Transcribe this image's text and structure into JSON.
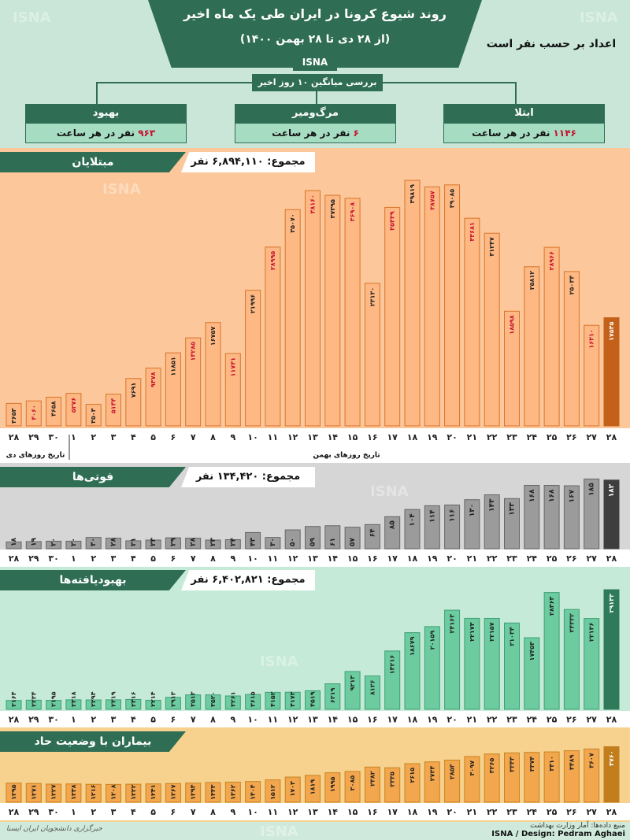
{
  "header": {
    "title": "روند شیوع کرونا در ایران طی یک ماه اخیر",
    "subtitle": "(از ۲۸ دی تا ۲۸ بهمن ۱۴۰۰)",
    "brand": "ISNA",
    "unit_note": "اعداد بر حسب نفر است",
    "avg_label": "بررسی میانگین ۱۰ روز اخیر"
  },
  "cards": [
    {
      "label": "ابتلا",
      "value": "۱۱۴۶",
      "suffix": "نفر در هر ساعت"
    },
    {
      "label": "مرگ‌ومیر",
      "value": "۶",
      "suffix": "نفر در هر ساعت"
    },
    {
      "label": "بهبود",
      "value": "۹۶۳",
      "suffix": "نفر در هر ساعت"
    }
  ],
  "watermark": "ISNA",
  "day_labels": [
    "۲۸",
    "۲۹",
    "۳۰",
    "۱",
    "۲",
    "۳",
    "۴",
    "۵",
    "۶",
    "۷",
    "۸",
    "۹",
    "۱۰",
    "۱۱",
    "۱۲",
    "۱۳",
    "۱۴",
    "۱۵",
    "۱۶",
    "۱۷",
    "۱۸",
    "۱۹",
    "۲۰",
    "۲۱",
    "۲۲",
    "۲۳",
    "۲۴",
    "۲۵",
    "۲۶",
    "۲۷",
    "۲۸"
  ],
  "month_labels": {
    "dey": "تاریخ روزهای دی",
    "bahman": "تاریخ روزهای بهمن"
  },
  "footer": {
    "source": "منبع داده‌ها: آمار وزارت بهداشت",
    "credit": "ISNA / Design: Pedram Aghaei",
    "agency": "خبرگزاری دانشجویان ایران ایسنا"
  },
  "chart_data": [
    {
      "type": "bar",
      "title": "مبتلایان",
      "total": "مجموع: ۶,۸۹۴,۱۱۰ نفر",
      "categories": [
        "28 Dey",
        "29 Dey",
        "30 Dey",
        "1",
        "2",
        "3",
        "4",
        "5",
        "6",
        "7",
        "8",
        "9",
        "10",
        "11",
        "12",
        "13",
        "14",
        "15",
        "16",
        "17",
        "18",
        "19",
        "20",
        "21",
        "22",
        "23",
        "24",
        "25",
        "26",
        "27",
        "28"
      ],
      "values": [
        3653,
        4060,
        4658,
        5276,
        3503,
        5144,
        7691,
        9378,
        11851,
        14285,
        16757,
        11741,
        21996,
        28995,
        35070,
        38160,
        37395,
        36908,
        23130,
        35439,
        39819,
        38757,
        39085,
        33681,
        31247,
        18598,
        25812,
        28966,
        25034,
        16310,
        17545
      ],
      "labels": [
        "۳۶۵۳",
        "۴۰۶۰",
        "۴۶۵۸",
        "۵۲۷۶",
        "۳۵۰۳",
        "۵۱۴۴",
        "۷۶۹۱",
        "۹۳۷۸",
        "۱۱۸۵۱",
        "۱۴۲۸۵",
        "۱۶۷۵۷",
        "۱۱۷۴۱",
        "۲۱۹۹۶",
        "۲۸۹۹۵",
        "۳۵۰۷۰",
        "۳۸۱۶۰",
        "۳۷۳۹۵",
        "۳۶۹۰۸",
        "۲۳۱۳۰",
        "۳۵۴۳۹",
        "۳۹۸۱۹",
        "۳۸۷۵۷",
        "۳۹۰۸۵",
        "۳۳۶۸۱",
        "۳۱۲۴۷",
        "۱۸۵۹۸",
        "۲۵۸۱۲",
        "۲۸۹۶۶",
        "۲۵۰۳۴",
        "۱۶۳۱۰",
        "۱۷۵۴۵"
      ],
      "label_color": [
        "dark",
        "red",
        "dark",
        "red",
        "dark",
        "red",
        "dark",
        "red",
        "dark",
        "red",
        "dark",
        "red",
        "dark",
        "red",
        "dark",
        "red",
        "dark",
        "red",
        "dark",
        "red",
        "dark",
        "red",
        "dark",
        "red",
        "dark",
        "red",
        "dark",
        "red",
        "dark",
        "red",
        "dark"
      ],
      "ylim": [
        0,
        42000
      ],
      "colors": {
        "bg": "#fcc89b",
        "bar": "#fdb884",
        "bar_last": "#c3611b",
        "stroke": "#d9742a"
      }
    },
    {
      "type": "bar",
      "title": "فوتی‌ها",
      "total": "مجموع: ۱۳۴,۴۲۰ نفر",
      "categories": [
        "28 Dey",
        "29 Dey",
        "30 Dey",
        "1",
        "2",
        "3",
        "4",
        "5",
        "6",
        "7",
        "8",
        "9",
        "10",
        "11",
        "12",
        "13",
        "14",
        "15",
        "16",
        "17",
        "18",
        "19",
        "20",
        "21",
        "22",
        "23",
        "24",
        "25",
        "26",
        "27",
        "28"
      ],
      "values": [
        18,
        19,
        20,
        20,
        30,
        28,
        21,
        23,
        29,
        28,
        23,
        24,
        43,
        30,
        50,
        59,
        61,
        57,
        64,
        85,
        104,
        114,
        116,
        130,
        143,
        133,
        168,
        168,
        167,
        185,
        182
      ],
      "labels": [
        "۱۸",
        "۱۹",
        "۲۰",
        "۲۰",
        "۳۰",
        "۲۸",
        "۲۱",
        "۲۳",
        "۲۹",
        "۲۸",
        "۲۳",
        "۲۴",
        "۴۳",
        "۳۰",
        "۵۰",
        "۵۹",
        "۶۱",
        "۵۷",
        "۶۴",
        "۸۵",
        "۱۰۴",
        "۱۱۴",
        "۱۱۶",
        "۱۳۰",
        "۱۴۳",
        "۱۳۳",
        "۱۶۸",
        "۱۶۸",
        "۱۶۷",
        "۱۸۵",
        "۱۸۲"
      ],
      "ylim": [
        0,
        190
      ],
      "colors": {
        "bg": "#d6d6d6",
        "bar": "#9b9b9b",
        "bar_last": "#3e3e3e",
        "stroke": "#666666"
      }
    },
    {
      "type": "bar",
      "title": "بهبودیافته‌ها",
      "total": "مجموع: ۶,۴۰۲,۸۲۱ نفر",
      "categories": [
        "28 Dey",
        "29 Dey",
        "30 Dey",
        "1",
        "2",
        "3",
        "4",
        "5",
        "6",
        "7",
        "8",
        "9",
        "10",
        "11",
        "12",
        "13",
        "14",
        "15",
        "16",
        "17",
        "18",
        "19",
        "20",
        "21",
        "22",
        "23",
        "24",
        "25",
        "26",
        "27",
        "28"
      ],
      "values": [
        2164,
        2234,
        2195,
        2318,
        2294,
        2319,
        2416,
        2214,
        2913,
        3513,
        3520,
        3261,
        3615,
        4152,
        4173,
        4519,
        6219,
        9213,
        8126,
        14216,
        18679,
        20159,
        24163,
        22173,
        22157,
        21034,
        17453,
        28463,
        24332,
        22136,
        29143
      ],
      "labels": [
        "۲۱۶۴",
        "۲۲۳۴",
        "۲۱۹۵",
        "۲۳۱۸",
        "۲۲۹۴",
        "۲۳۱۹",
        "۲۴۱۶",
        "۲۲۱۴",
        "۲۹۱۳",
        "۳۵۱۳",
        "۳۵۲۰",
        "۳۲۶۱",
        "۳۶۱۵",
        "۴۱۵۲",
        "۴۱۷۳",
        "۴۵۱۹",
        "۶۲۱۹",
        "۹۲۱۳",
        "۸۱۲۶",
        "۱۴۲۱۶",
        "۱۸۶۷۹",
        "۲۰۱۵۹",
        "۲۴۱۶۳",
        "۲۲۱۷۳",
        "۲۲۱۵۷",
        "۲۱۰۳۴",
        "۱۷۴۵۳",
        "۲۸۴۶۳",
        "۲۴۳۳۲",
        "۲۲۱۳۶",
        "۲۹۱۴۳"
      ],
      "ylim": [
        0,
        30500
      ],
      "colors": {
        "bg": "#c6ead8",
        "bar": "#6ccca0",
        "bar_last": "#2f7a58",
        "stroke": "#3e9e75"
      }
    },
    {
      "type": "bar",
      "title": "بیماران با وضعیت حاد",
      "categories": [
        "28 Dey",
        "29 Dey",
        "30 Dey",
        "1",
        "2",
        "3",
        "4",
        "5",
        "6",
        "7",
        "8",
        "9",
        "10",
        "11",
        "12",
        "13",
        "14",
        "15",
        "16",
        "17",
        "18",
        "19",
        "20",
        "21",
        "22",
        "23",
        "24",
        "25",
        "26",
        "27",
        "28"
      ],
      "values": [
        1295,
        1271,
        1227,
        1238,
        1216,
        1208,
        1222,
        1241,
        1267,
        1294,
        1333,
        1362,
        1404,
        1512,
        1703,
        1819,
        1995,
        2085,
        2382,
        2335,
        2615,
        2734,
        2853,
        3097,
        3265,
        3343,
        3374,
        3410,
        3489,
        3607,
        3760
      ],
      "labels": [
        "۱۲۹۵",
        "۱۲۷۱",
        "۱۲۲۷",
        "۱۲۳۸",
        "۱۲۱۶",
        "۱۲۰۸",
        "۱۲۲۲",
        "۱۲۴۱",
        "۱۲۶۷",
        "۱۲۹۴",
        "۱۳۳۳",
        "۱۳۶۲",
        "۱۴۰۴",
        "۱۵۱۲",
        "۱۷۰۳",
        "۱۸۱۹",
        "۱۹۹۵",
        "۲۰۸۵",
        "۲۳۸۲",
        "۲۳۳۵",
        "۲۶۱۵",
        "۲۷۳۴",
        "۲۸۵۳",
        "۳۰۹۷",
        "۳۲۶۵",
        "۳۳۴۳",
        "۳۳۷۴",
        "۳۴۱۰",
        "۳۴۸۹",
        "۳۶۰۷",
        "۳۷۶۰"
      ],
      "ylim": [
        0,
        4000
      ],
      "colors": {
        "bg": "#f6d28e",
        "bar": "#f2a64e",
        "bar_last": "#c27d1c",
        "stroke": "#c98320"
      }
    }
  ]
}
